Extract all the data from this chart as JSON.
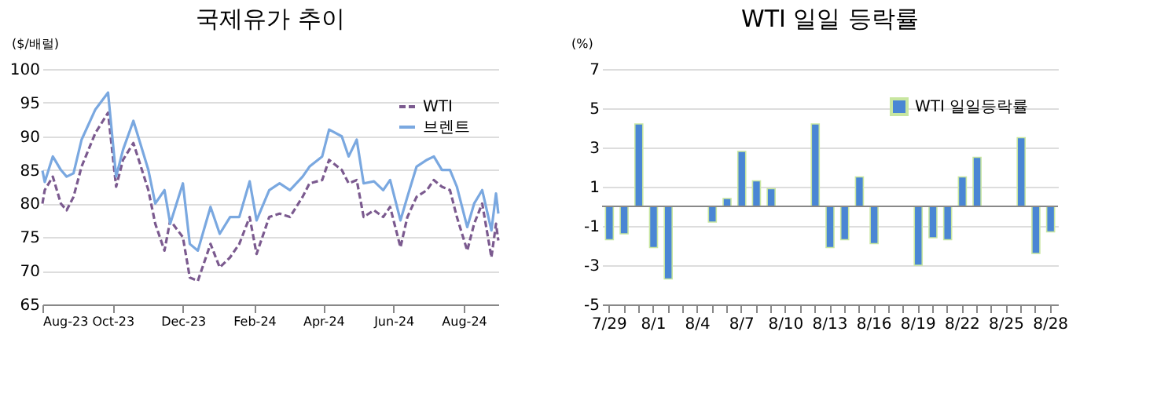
{
  "chart_data": [
    {
      "type": "line",
      "title": "국제유가 추이",
      "ylabel": "($/배럴)",
      "xlim": [
        "2023-08-01",
        "2024-08-31"
      ],
      "xticks": [
        {
          "value": "2023-08-01",
          "label": "Aug-23"
        },
        {
          "value": "2023-10-01",
          "label": "Oct-23"
        },
        {
          "value": "2023-12-01",
          "label": "Dec-23"
        },
        {
          "value": "2024-02-01",
          "label": "Feb-24"
        },
        {
          "value": "2024-04-01",
          "label": "Apr-24"
        },
        {
          "value": "2024-06-01",
          "label": "Jun-24"
        },
        {
          "value": "2024-08-01",
          "label": "Aug-24"
        }
      ],
      "ylim": [
        65,
        100
      ],
      "yticks": [
        65,
        70,
        75,
        80,
        85,
        90,
        95,
        100
      ],
      "grid": "y",
      "legend": "top right",
      "marker": "none",
      "x": [
        "2023-08-01",
        "2023-08-03",
        "2023-08-10",
        "2023-08-17",
        "2023-08-22",
        "2023-08-28",
        "2023-09-04",
        "2023-09-16",
        "2023-09-27",
        "2023-10-04",
        "2023-10-10",
        "2023-10-19",
        "2023-11-01",
        "2023-11-07",
        "2023-11-15",
        "2023-11-20",
        "2023-12-01",
        "2023-12-07",
        "2023-12-14",
        "2023-12-25",
        "2024-01-02",
        "2024-01-11",
        "2024-01-19",
        "2024-01-28",
        "2024-02-03",
        "2024-02-14",
        "2024-02-23",
        "2024-03-03",
        "2024-03-14",
        "2024-03-20",
        "2024-03-31",
        "2024-04-06",
        "2024-04-17",
        "2024-04-23",
        "2024-04-30",
        "2024-05-06",
        "2024-05-15",
        "2024-05-23",
        "2024-05-29",
        "2024-06-07",
        "2024-06-13",
        "2024-06-21",
        "2024-06-30",
        "2024-07-06",
        "2024-07-13",
        "2024-07-20",
        "2024-07-26",
        "2024-08-04",
        "2024-08-10",
        "2024-08-17",
        "2024-08-25",
        "2024-08-29",
        "2024-08-31"
      ],
      "series": [
        {
          "name": "WTI",
          "color": "#7b5a8f",
          "line_style": "dashed",
          "values": [
            80,
            82,
            84,
            80,
            79,
            81,
            85.5,
            90.5,
            93.5,
            82.5,
            86.5,
            89,
            82,
            77,
            73,
            77.5,
            75,
            69,
            68.5,
            74,
            70.5,
            72,
            74,
            78,
            72.5,
            78,
            78.5,
            78,
            81,
            83,
            83.5,
            86.5,
            85,
            83,
            83.5,
            78,
            79,
            78,
            79.5,
            73.5,
            78,
            81,
            82,
            83.5,
            82.5,
            82,
            78,
            73,
            77,
            80,
            72,
            77,
            74.5
          ]
        },
        {
          "name": "브렌트",
          "color": "#7aa8e0",
          "line_style": "solid",
          "values": [
            84.9,
            83.2,
            87,
            85,
            84,
            84.5,
            89.5,
            94,
            96.5,
            84,
            88,
            92.3,
            85,
            80,
            82,
            77,
            83,
            74,
            73,
            79.5,
            75.5,
            78,
            78,
            83.3,
            77.5,
            82,
            83,
            82,
            84,
            85.5,
            87,
            91,
            90,
            87,
            89.5,
            83,
            83.3,
            82,
            83.5,
            77.5,
            81,
            85.5,
            86.5,
            87,
            85,
            85,
            82.5,
            76.5,
            80,
            82,
            76,
            81.5,
            78.5
          ]
        }
      ]
    },
    {
      "type": "bar",
      "title": "WTI 일일 등락률",
      "ylabel": "(%)",
      "categories": [
        "7/29",
        null,
        null,
        "8/1",
        null,
        null,
        "8/4",
        null,
        null,
        "8/7",
        null,
        null,
        "8/10",
        null,
        null,
        "8/13",
        null,
        null,
        "8/16",
        null,
        null,
        "8/19",
        null,
        null,
        "8/22",
        null,
        null,
        "8/25",
        null,
        null,
        "8/28"
      ],
      "ylim": [
        -5,
        7
      ],
      "yticks": [
        -5,
        -3,
        -1,
        1,
        3,
        5,
        7
      ],
      "grid": "y",
      "legend": "top right",
      "series": [
        {
          "name": "WTI 일일등락률",
          "color": "#4a86d4",
          "values": [
            -1.7,
            -1.4,
            4.2,
            -2.1,
            -3.7,
            null,
            null,
            -0.8,
            0.4,
            2.8,
            1.3,
            0.9,
            null,
            null,
            4.2,
            -2.1,
            -1.7,
            1.5,
            -1.9,
            null,
            null,
            -3.0,
            -1.6,
            -1.7,
            1.5,
            2.5,
            null,
            null,
            3.5,
            -2.4,
            -1.3
          ]
        }
      ]
    }
  ]
}
